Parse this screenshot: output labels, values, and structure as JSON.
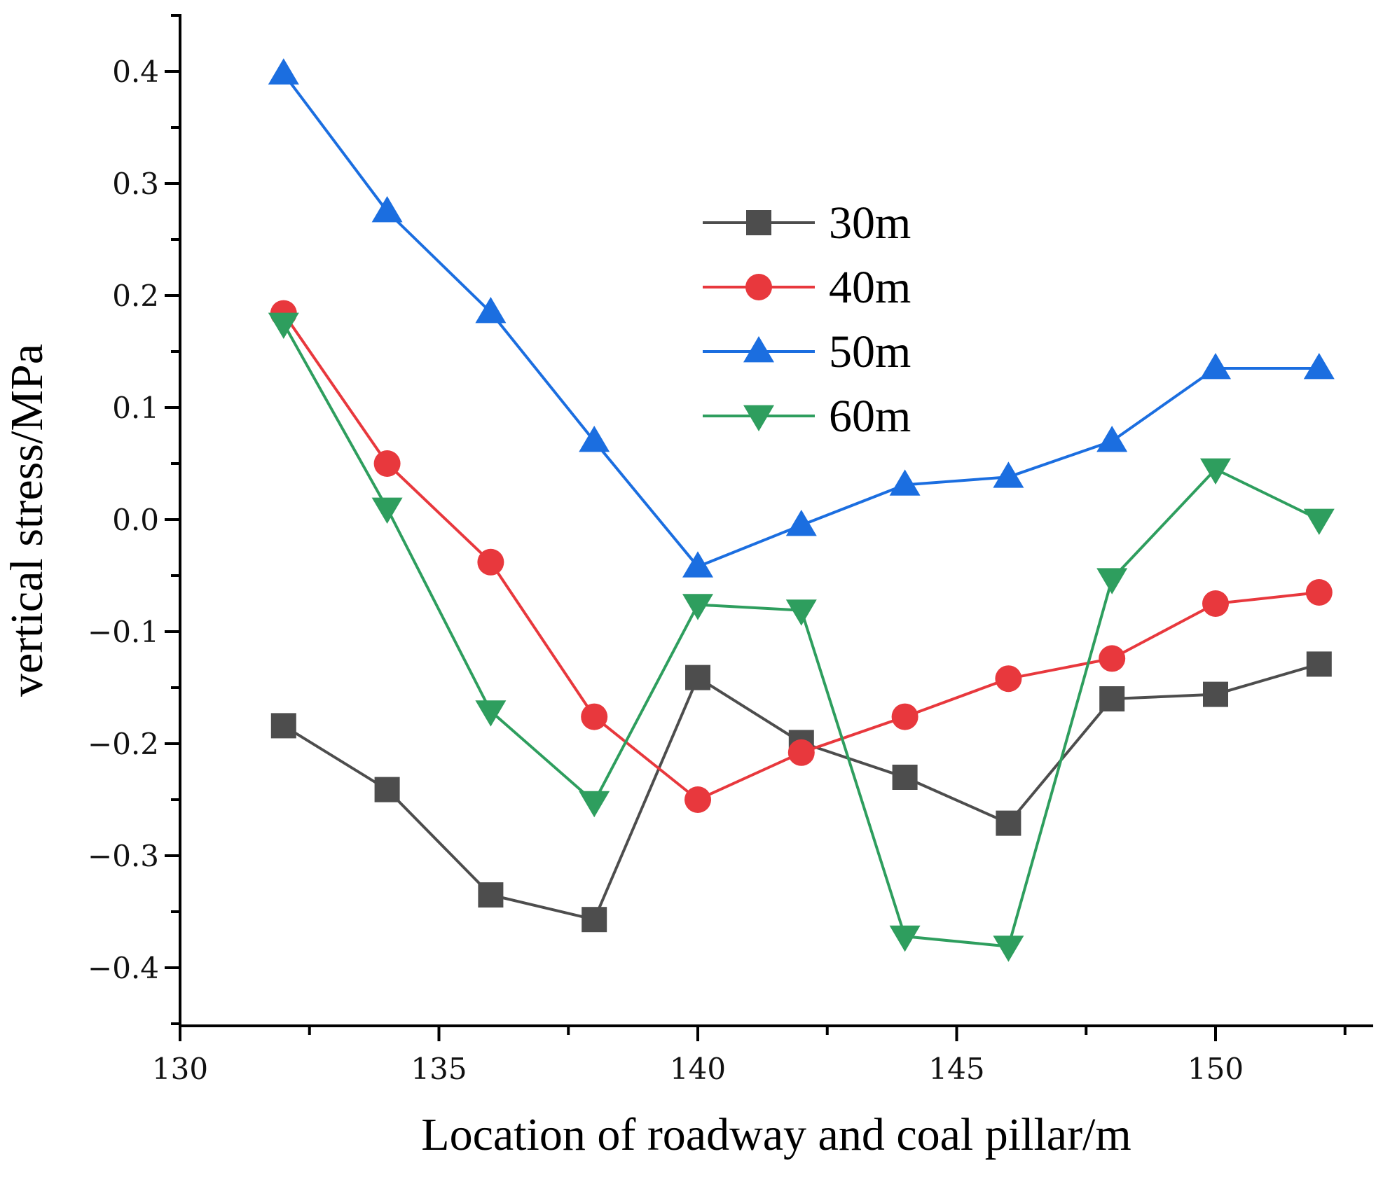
{
  "chart_data": {
    "type": "line",
    "title": "",
    "xlabel": "Location of roadway and coal pillar/m",
    "ylabel": "vertical stress/MPa",
    "xlim": [
      130,
      153
    ],
    "ylim": [
      -0.45,
      0.45
    ],
    "xticks": [
      130,
      135,
      140,
      145,
      150
    ],
    "xtick_labels": [
      "130",
      "135",
      "140",
      "145",
      "150"
    ],
    "yticks": [
      -0.4,
      -0.3,
      -0.2,
      -0.1,
      0.0,
      0.1,
      0.2,
      0.3,
      0.4
    ],
    "ytick_labels": [
      "−0.4",
      "−0.3",
      "−0.2",
      "−0.1",
      "0.0",
      "0.1",
      "0.2",
      "0.3",
      "0.4"
    ],
    "grid": false,
    "legend_position": "upper-center",
    "x": [
      132,
      134,
      136,
      138,
      140,
      142,
      144,
      146,
      148,
      150,
      152
    ],
    "series": [
      {
        "name": "30m",
        "color": "#4d4d4d",
        "marker": "square",
        "values": [
          -0.184,
          -0.241,
          -0.335,
          -0.357,
          -0.141,
          -0.199,
          -0.23,
          -0.271,
          -0.16,
          -0.156,
          -0.129
        ]
      },
      {
        "name": "40m",
        "color": "#e8383d",
        "marker": "circle",
        "values": [
          0.184,
          0.05,
          -0.038,
          -0.176,
          -0.25,
          -0.208,
          -0.176,
          -0.142,
          -0.124,
          -0.075,
          -0.065
        ]
      },
      {
        "name": "50m",
        "color": "#1b6ee0",
        "marker": "triangle-up",
        "values": [
          0.398,
          0.275,
          0.185,
          0.07,
          -0.042,
          -0.005,
          0.031,
          0.038,
          0.07,
          0.135,
          0.135
        ]
      },
      {
        "name": "60m",
        "color": "#2e9e5e",
        "marker": "triangle-down",
        "values": [
          0.175,
          0.01,
          -0.171,
          -0.252,
          -0.076,
          -0.081,
          -0.372,
          -0.381,
          -0.053,
          0.045,
          0.0
        ]
      }
    ]
  }
}
